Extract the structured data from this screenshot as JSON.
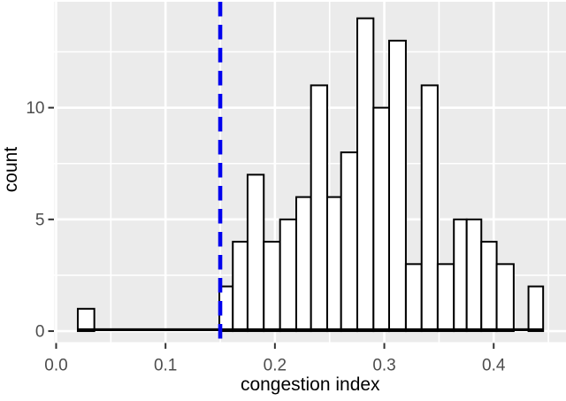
{
  "chart_data": {
    "type": "bar",
    "subtype": "histogram",
    "title": "",
    "xlabel": "congestion index",
    "ylabel": "count",
    "x_ticks": [
      {
        "value": 0.0,
        "label": "0.0"
      },
      {
        "value": 0.1,
        "label": "0.1"
      },
      {
        "value": 0.2,
        "label": "0.2"
      },
      {
        "value": 0.3,
        "label": "0.3"
      },
      {
        "value": 0.4,
        "label": "0.4"
      }
    ],
    "y_ticks": [
      {
        "value": 0,
        "label": "0"
      },
      {
        "value": 5,
        "label": "5"
      },
      {
        "value": 10,
        "label": "10"
      }
    ],
    "x_minor_gridlines": [
      0.05,
      0.15,
      0.25,
      0.35,
      0.45
    ],
    "y_minor_gridlines": [
      2.5,
      7.5,
      12.5
    ],
    "xlim": [
      -0.0016,
      0.4661
    ],
    "ylim": [
      -0.493,
      14.74
    ],
    "grid": true,
    "legend": "none",
    "bars": [
      {
        "x0": 0.0198,
        "x1": 0.0349,
        "count": 1
      },
      {
        "x0": 0.1492,
        "x1": 0.1615,
        "count": 2
      },
      {
        "x0": 0.1615,
        "x1": 0.175,
        "count": 4
      },
      {
        "x0": 0.175,
        "x1": 0.1898,
        "count": 7
      },
      {
        "x0": 0.1898,
        "x1": 0.2047,
        "count": 4
      },
      {
        "x0": 0.2047,
        "x1": 0.2195,
        "count": 5
      },
      {
        "x0": 0.2195,
        "x1": 0.233,
        "count": 6
      },
      {
        "x0": 0.233,
        "x1": 0.2478,
        "count": 11
      },
      {
        "x0": 0.2478,
        "x1": 0.2605,
        "count": 6
      },
      {
        "x0": 0.2605,
        "x1": 0.2753,
        "count": 8
      },
      {
        "x0": 0.2753,
        "x1": 0.2901,
        "count": 14
      },
      {
        "x0": 0.2901,
        "x1": 0.3044,
        "count": 10
      },
      {
        "x0": 0.3044,
        "x1": 0.3197,
        "count": 13
      },
      {
        "x0": 0.3197,
        "x1": 0.3341,
        "count": 3
      },
      {
        "x0": 0.3341,
        "x1": 0.3488,
        "count": 11
      },
      {
        "x0": 0.3488,
        "x1": 0.3636,
        "count": 3
      },
      {
        "x0": 0.3636,
        "x1": 0.3753,
        "count": 5
      },
      {
        "x0": 0.3753,
        "x1": 0.3887,
        "count": 5
      },
      {
        "x0": 0.3887,
        "x1": 0.4027,
        "count": 4
      },
      {
        "x0": 0.4027,
        "x1": 0.4183,
        "count": 3
      },
      {
        "x0": 0.4183,
        "x1": 0.4318,
        "count": 0
      },
      {
        "x0": 0.4318,
        "x1": 0.4452,
        "count": 2
      }
    ],
    "zero_baseline": {
      "x0": 0.0198,
      "x1": 0.4452
    },
    "vline": {
      "x": 0.15,
      "linetype": "dashed",
      "color": "#0000ee"
    },
    "style": {
      "panel_bg": "#ebebeb",
      "gridline": "#ffffff",
      "bar_fill": "#ffffff",
      "bar_stroke": "#000000",
      "axis_text_color": "#4d4d4d",
      "axis_title_color": "#000000",
      "tick_mark_color": "#333333"
    }
  }
}
